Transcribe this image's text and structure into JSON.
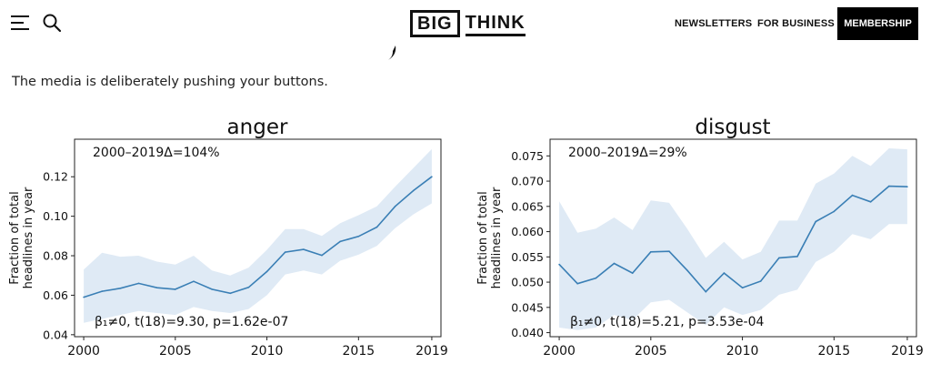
{
  "header": {
    "menu_icon": "hamburger-menu-icon",
    "search_icon": "search-icon",
    "logo_part1": "BIG",
    "logo_part2": "THINK",
    "nav": [
      "NEWSLETTERS",
      "FOR BUSINESS"
    ],
    "membership": "MEMBERSHIP"
  },
  "article": {
    "subtitle": "The media is deliberately pushing your buttons."
  },
  "chart_data": [
    {
      "type": "line",
      "title": "anger",
      "ylabel_line1": "Fraction of total",
      "ylabel_line2": "headlines in year",
      "xlabel": "",
      "x": [
        2000,
        2001,
        2002,
        2003,
        2004,
        2005,
        2006,
        2007,
        2008,
        2009,
        2010,
        2011,
        2012,
        2013,
        2014,
        2015,
        2016,
        2017,
        2018,
        2019
      ],
      "series": [
        {
          "values": [
            0.059,
            0.062,
            0.0635,
            0.066,
            0.0638,
            0.063,
            0.067,
            0.063,
            0.061,
            0.064,
            0.072,
            0.0818,
            0.0832,
            0.0802,
            0.0872,
            0.0898,
            0.0945,
            0.105,
            0.113,
            0.12
          ],
          "lower": [
            0.046,
            0.048,
            0.05,
            0.052,
            0.051,
            0.05,
            0.054,
            0.052,
            0.051,
            0.053,
            0.06,
            0.0705,
            0.0725,
            0.0705,
            0.0775,
            0.0805,
            0.085,
            0.094,
            0.101,
            0.1065
          ],
          "upper": [
            0.073,
            0.0815,
            0.0795,
            0.08,
            0.077,
            0.0755,
            0.08,
            0.0725,
            0.07,
            0.074,
            0.083,
            0.0935,
            0.0935,
            0.09,
            0.0965,
            0.1005,
            0.105,
            0.115,
            0.1245,
            0.134
          ]
        }
      ],
      "xticks": [
        2000,
        2005,
        2010,
        2015,
        2019
      ],
      "yticks": [
        0.04,
        0.06,
        0.08,
        0.1,
        0.12
      ],
      "ytick_labels": [
        "0.04",
        "0.06",
        "0.08",
        "0.10",
        "0.12"
      ],
      "xlim": [
        1999.5,
        2019.5
      ],
      "ylim": [
        0.039,
        0.139
      ],
      "annotation_top": "2000–2019Δ=104%",
      "annotation_bottom": "β₁≠0, t(18)=9.30, p=1.62e-07",
      "grid": false,
      "line_color": "#3a7fb5",
      "band_color": "#dfeaf5"
    },
    {
      "type": "line",
      "title": "disgust",
      "ylabel_line1": "Fraction of total",
      "ylabel_line2": "headlines in year",
      "xlabel": "",
      "x": [
        2000,
        2001,
        2002,
        2003,
        2004,
        2005,
        2006,
        2007,
        2008,
        2009,
        2010,
        2011,
        2012,
        2013,
        2014,
        2015,
        2016,
        2017,
        2018,
        2019
      ],
      "series": [
        {
          "values": [
            0.0535,
            0.0497,
            0.0508,
            0.0537,
            0.0518,
            0.056,
            0.0561,
            0.0523,
            0.0481,
            0.0518,
            0.0489,
            0.0502,
            0.0548,
            0.0551,
            0.062,
            0.064,
            0.0672,
            0.0659,
            0.069,
            0.0689
          ],
          "lower": [
            0.041,
            0.0405,
            0.041,
            0.0435,
            0.0425,
            0.046,
            0.0465,
            0.044,
            0.0415,
            0.045,
            0.0435,
            0.0445,
            0.0475,
            0.0485,
            0.054,
            0.056,
            0.0595,
            0.0585,
            0.0615,
            0.0615
          ],
          "upper": [
            0.066,
            0.0598,
            0.0606,
            0.0628,
            0.0603,
            0.0662,
            0.0657,
            0.0605,
            0.0548,
            0.058,
            0.0545,
            0.056,
            0.0622,
            0.0622,
            0.0695,
            0.0715,
            0.075,
            0.073,
            0.0765,
            0.0763
          ]
        }
      ],
      "xticks": [
        2000,
        2005,
        2010,
        2015,
        2019
      ],
      "yticks": [
        0.04,
        0.045,
        0.05,
        0.055,
        0.06,
        0.065,
        0.07,
        0.075
      ],
      "ytick_labels": [
        "0.040",
        "0.045",
        "0.050",
        "0.055",
        "0.060",
        "0.065",
        "0.070",
        "0.075"
      ],
      "xlim": [
        1999.5,
        2019.5
      ],
      "ylim": [
        0.0392,
        0.0783
      ],
      "annotation_top": "2000–2019Δ=29%",
      "annotation_bottom": "β₁≠0, t(18)=5.21, p=3.53e-04",
      "grid": false,
      "line_color": "#3a7fb5",
      "band_color": "#dfeaf5"
    }
  ]
}
